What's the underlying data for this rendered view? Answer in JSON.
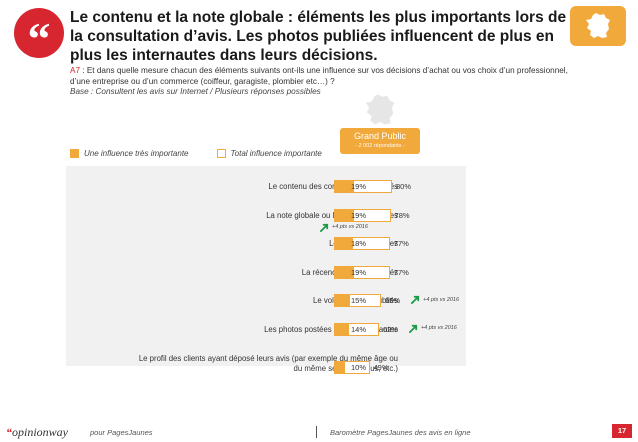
{
  "header": {
    "quote_mark": "“",
    "title": "Le contenu et la note globale : éléments les plus importants lors de la consultation d’avis. Les photos publiées influencent de plus en plus les internautes dans leurs décisions."
  },
  "question": {
    "code": "A7",
    "text": " : Et dans quelle mesure chacun des éléments suivants ont-ils une influence sur vos décisions d’achat ou vos choix d’un professionnel, d’une entreprise ou d’un commerce (coiffeur, garagiste, plombier etc…) ?",
    "base": "Base : Consultent les avis sur Internet  / Plusieurs réponses possibles"
  },
  "segment": {
    "title": "Grand Public",
    "subtitle": "- 2 002 répondants -"
  },
  "legend": {
    "very_important": "Une influence très importante",
    "total": "Total influence  importante"
  },
  "colors": {
    "accent": "#f2a93b",
    "brand_red": "#d7262f",
    "evolution_green": "#1e9b46",
    "panel_bg": "#f1f1f1"
  },
  "chart_data": {
    "type": "bar",
    "orientation": "horizontal",
    "categories": [
      "Le contenu des commentaires postés",
      "La note globale ou le nombre d’étoiles",
      "Les notes détaillées",
      "La récence des avis publiés",
      "Le volume d’avis publiés",
      "Les photos postées par les internautes",
      "Le profil des clients ayant déposé leurs avis (par exemple du même âge ou du même sexe que vous, etc.)"
    ],
    "series": [
      {
        "name": "Une influence très importante",
        "values": [
          19,
          19,
          18,
          19,
          15,
          14,
          10
        ]
      },
      {
        "name": "Total influence  importante",
        "values": [
          80,
          78,
          77,
          77,
          65,
          62,
          49
        ]
      }
    ],
    "annotations": [
      {
        "category_index": 1,
        "text": "+4 pts vs 2016",
        "position": "below"
      },
      {
        "category_index": 4,
        "text": "+4 pts vs 2016",
        "position": "right"
      },
      {
        "category_index": 5,
        "text": "+4 pts vs 2016",
        "position": "right"
      }
    ],
    "xlim": [
      0,
      100
    ]
  },
  "footer": {
    "logo": "opinionway",
    "client": "pour PagesJaunes",
    "survey": "Baromètre PagesJaunes des avis en ligne",
    "page_number": "17"
  }
}
